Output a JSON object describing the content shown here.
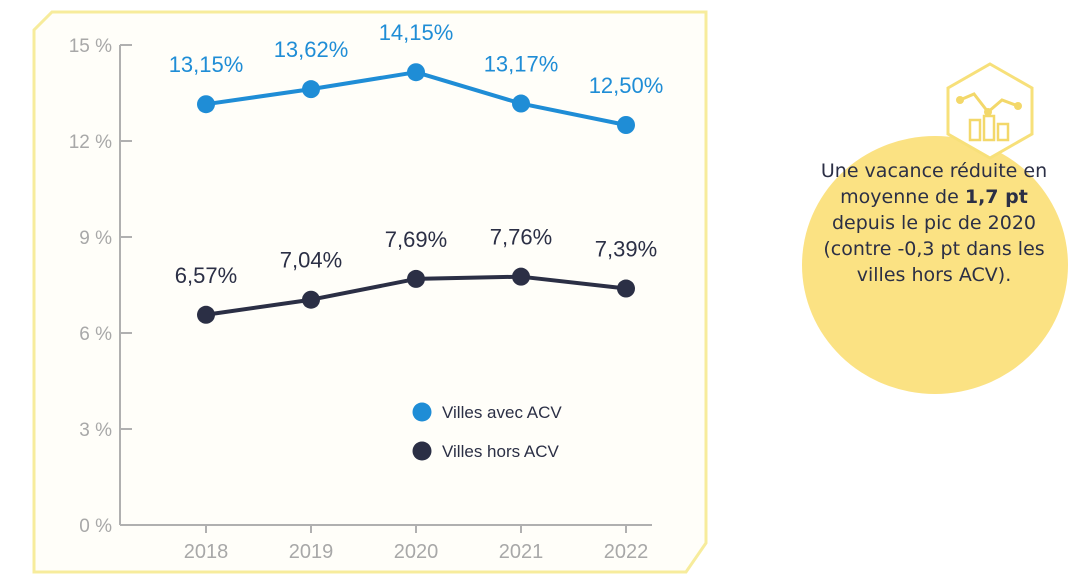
{
  "chart_data": {
    "type": "line",
    "categories": [
      "2018",
      "2019",
      "2020",
      "2021",
      "2022"
    ],
    "ylim": [
      0,
      15
    ],
    "yticks": [
      0,
      3,
      6,
      9,
      12,
      15
    ],
    "ytick_labels": [
      "0 %",
      "3 %",
      "6 %",
      "9 %",
      "12 %",
      "15 %"
    ],
    "grid": false,
    "legend_position": "bottom-right",
    "series": [
      {
        "name": "Villes avec ACV",
        "color": "#1f8dd6",
        "values": [
          13.15,
          13.62,
          14.15,
          13.17,
          12.5
        ],
        "labels": [
          "13,15%",
          "13,62%",
          "14,15%",
          "13,17%",
          "12,50%"
        ]
      },
      {
        "name": "Villes hors ACV",
        "color": "#2b2f45",
        "values": [
          6.57,
          7.04,
          7.69,
          7.76,
          7.39
        ],
        "labels": [
          "6,57%",
          "7,04%",
          "7,69%",
          "7,76%",
          "7,39%"
        ]
      }
    ]
  },
  "callout": {
    "text_before": "Une vacance réduite en moyenne de ",
    "bold": "1,7 pt",
    "text_after": " depuis le pic de 2020 (contre -0,3 pt dans les villes hors ACV).",
    "circle_color": "#fbe283",
    "icon": "chart-hexagon-icon"
  },
  "colors": {
    "frame": "#f7ec9c",
    "axis": "#b0b0b0",
    "tick_text": "#a8a8a8"
  }
}
